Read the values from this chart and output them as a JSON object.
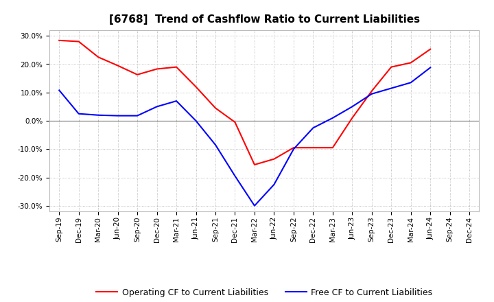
{
  "title": "[6768]  Trend of Cashflow Ratio to Current Liabilities",
  "x_labels": [
    "Sep-19",
    "Dec-19",
    "Mar-20",
    "Jun-20",
    "Sep-20",
    "Dec-20",
    "Mar-21",
    "Jun-21",
    "Sep-21",
    "Dec-21",
    "Mar-22",
    "Jun-22",
    "Sep-22",
    "Dec-22",
    "Mar-23",
    "Jun-23",
    "Sep-23",
    "Dec-23",
    "Mar-24",
    "Jun-24",
    "Sep-24",
    "Dec-24"
  ],
  "operating_cf": [
    0.284,
    0.28,
    0.225,
    0.195,
    0.163,
    0.183,
    0.19,
    0.12,
    0.045,
    -0.005,
    -0.155,
    -0.135,
    -0.095,
    -0.095,
    -0.095,
    0.01,
    0.105,
    0.19,
    0.205,
    0.253,
    null,
    null
  ],
  "free_cf": [
    0.108,
    0.025,
    0.02,
    0.018,
    0.018,
    0.05,
    0.07,
    0.0,
    -0.085,
    -0.195,
    -0.3,
    -0.225,
    -0.1,
    -0.025,
    0.01,
    0.05,
    0.095,
    0.115,
    0.135,
    0.188,
    null,
    null
  ],
  "ylim": [
    -0.32,
    0.32
  ],
  "yticks": [
    -0.3,
    -0.2,
    -0.1,
    0.0,
    0.1,
    0.2,
    0.3
  ],
  "line_color_operating": "#ff0000",
  "line_color_free": "#0000ff",
  "background_color": "#ffffff",
  "plot_bg_color": "#ffffff",
  "grid_color": "#aaaaaa",
  "zero_line_color": "#888888",
  "title_fontsize": 11,
  "tick_fontsize": 7.5,
  "legend_fontsize": 9
}
